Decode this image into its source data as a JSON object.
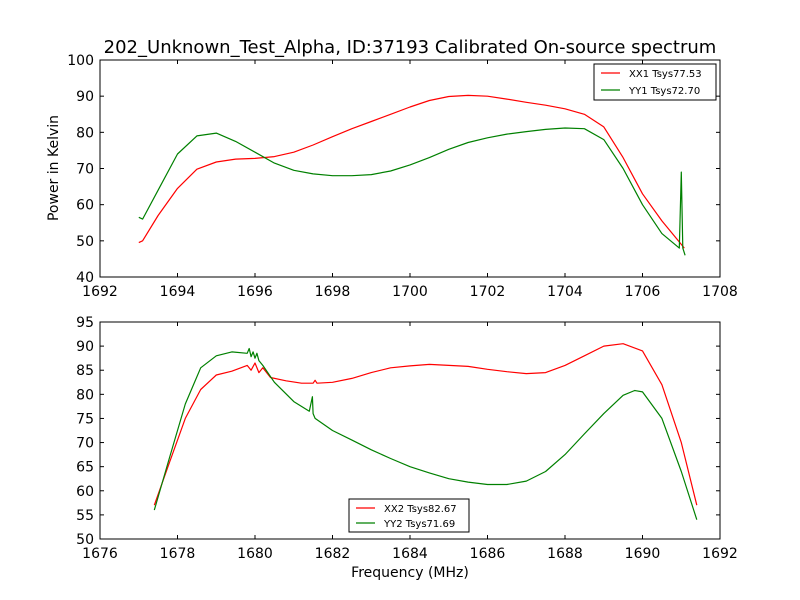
{
  "figure_title": "202_Unknown_Test_Alpha, ID:37193 Calibrated On-source spectrum",
  "chart_data": [
    {
      "type": "line",
      "title": "202_Unknown_Test_Alpha, ID:37193 Calibrated On-source spectrum",
      "xlabel": "",
      "ylabel": "Power in Kelvin",
      "xlim": [
        1692,
        1708
      ],
      "ylim": [
        40,
        100
      ],
      "xticks": [
        1692,
        1694,
        1696,
        1698,
        1700,
        1702,
        1704,
        1706,
        1708
      ],
      "yticks": [
        40,
        50,
        60,
        70,
        80,
        90,
        100
      ],
      "grid": false,
      "legend_position": "top-right",
      "series": [
        {
          "name": "XX1 Tsys77.53",
          "color": "#ff0000",
          "x": [
            1693.0,
            1693.1,
            1693.5,
            1694.0,
            1694.5,
            1695.0,
            1695.5,
            1696.0,
            1696.5,
            1697.0,
            1697.5,
            1698.0,
            1698.5,
            1699.0,
            1699.5,
            1700.0,
            1700.5,
            1701.0,
            1701.5,
            1702.0,
            1702.5,
            1703.0,
            1703.5,
            1704.0,
            1704.5,
            1705.0,
            1705.5,
            1706.0,
            1706.5,
            1707.0,
            1707.08
          ],
          "y": [
            49.5,
            50.0,
            57.0,
            64.5,
            69.8,
            71.8,
            72.6,
            72.8,
            73.3,
            74.5,
            76.5,
            78.8,
            81.0,
            83.0,
            85.0,
            87.0,
            88.8,
            89.9,
            90.2,
            90.0,
            89.2,
            88.3,
            87.5,
            86.5,
            85.0,
            81.5,
            73.0,
            63.0,
            55.5,
            49.0,
            48.0
          ]
        },
        {
          "name": "YY1 Tsys72.70",
          "color": "#008000",
          "x": [
            1693.0,
            1693.1,
            1693.5,
            1694.0,
            1694.5,
            1695.0,
            1695.5,
            1696.0,
            1696.5,
            1697.0,
            1697.5,
            1698.0,
            1698.5,
            1699.0,
            1699.5,
            1700.0,
            1700.5,
            1701.0,
            1701.5,
            1702.0,
            1702.5,
            1703.0,
            1703.5,
            1704.0,
            1704.5,
            1705.0,
            1705.5,
            1706.0,
            1706.5,
            1706.95,
            1707.0,
            1707.04,
            1707.1
          ],
          "y": [
            56.5,
            56.0,
            64.0,
            74.0,
            79.0,
            79.8,
            77.5,
            74.5,
            71.5,
            69.5,
            68.5,
            68.0,
            68.0,
            68.3,
            69.3,
            71.0,
            73.0,
            75.3,
            77.2,
            78.5,
            79.5,
            80.2,
            80.8,
            81.2,
            81.0,
            78.0,
            70.0,
            60.0,
            52.0,
            48.0,
            69.0,
            48.0,
            46.0
          ]
        }
      ]
    },
    {
      "type": "line",
      "title": "",
      "xlabel": "Frequency (MHz)",
      "ylabel": "",
      "xlim": [
        1676,
        1692
      ],
      "ylim": [
        50,
        95
      ],
      "xticks": [
        1676,
        1678,
        1680,
        1682,
        1684,
        1686,
        1688,
        1690,
        1692
      ],
      "yticks": [
        50,
        55,
        60,
        65,
        70,
        75,
        80,
        85,
        90,
        95
      ],
      "grid": false,
      "legend_position": "bottom-center",
      "series": [
        {
          "name": "XX2 Tsys82.67",
          "color": "#ff0000",
          "x": [
            1677.4,
            1677.8,
            1678.2,
            1678.6,
            1679.0,
            1679.4,
            1679.8,
            1679.9,
            1680.0,
            1680.1,
            1680.2,
            1680.4,
            1680.8,
            1681.2,
            1681.5,
            1681.55,
            1681.6,
            1682.0,
            1682.5,
            1683.0,
            1683.5,
            1684.0,
            1684.5,
            1685.0,
            1685.5,
            1686.0,
            1686.5,
            1687.0,
            1687.5,
            1688.0,
            1688.5,
            1689.0,
            1689.5,
            1690.0,
            1690.5,
            1691.0,
            1691.4
          ],
          "y": [
            57.0,
            66.0,
            75.0,
            81.0,
            84.0,
            84.8,
            86.0,
            85.0,
            86.5,
            84.5,
            85.5,
            83.5,
            82.8,
            82.3,
            82.3,
            82.9,
            82.3,
            82.5,
            83.3,
            84.5,
            85.5,
            85.9,
            86.2,
            86.0,
            85.8,
            85.2,
            84.7,
            84.3,
            84.5,
            86.0,
            88.0,
            90.0,
            90.5,
            89.0,
            82.0,
            70.0,
            57.0
          ]
        },
        {
          "name": "YY2 Tsys71.69",
          "color": "#008000",
          "x": [
            1677.4,
            1677.8,
            1678.2,
            1678.6,
            1679.0,
            1679.4,
            1679.8,
            1679.85,
            1679.9,
            1679.95,
            1680.0,
            1680.05,
            1680.1,
            1680.2,
            1680.5,
            1681.0,
            1681.4,
            1681.48,
            1681.5,
            1681.55,
            1682.0,
            1682.5,
            1683.0,
            1683.5,
            1684.0,
            1684.5,
            1685.0,
            1685.5,
            1686.0,
            1686.5,
            1687.0,
            1687.5,
            1688.0,
            1688.5,
            1689.0,
            1689.5,
            1689.8,
            1690.0,
            1690.5,
            1691.0,
            1691.4
          ],
          "y": [
            56.0,
            67.0,
            78.0,
            85.5,
            88.0,
            88.8,
            88.5,
            89.5,
            87.8,
            88.8,
            87.5,
            88.5,
            87.0,
            86.0,
            82.5,
            78.5,
            76.5,
            79.5,
            76.0,
            75.0,
            72.5,
            70.5,
            68.5,
            66.7,
            65.0,
            63.7,
            62.5,
            61.8,
            61.3,
            61.3,
            62.0,
            64.0,
            67.5,
            71.8,
            76.0,
            79.8,
            80.8,
            80.5,
            75.0,
            64.0,
            54.0
          ]
        }
      ]
    }
  ]
}
